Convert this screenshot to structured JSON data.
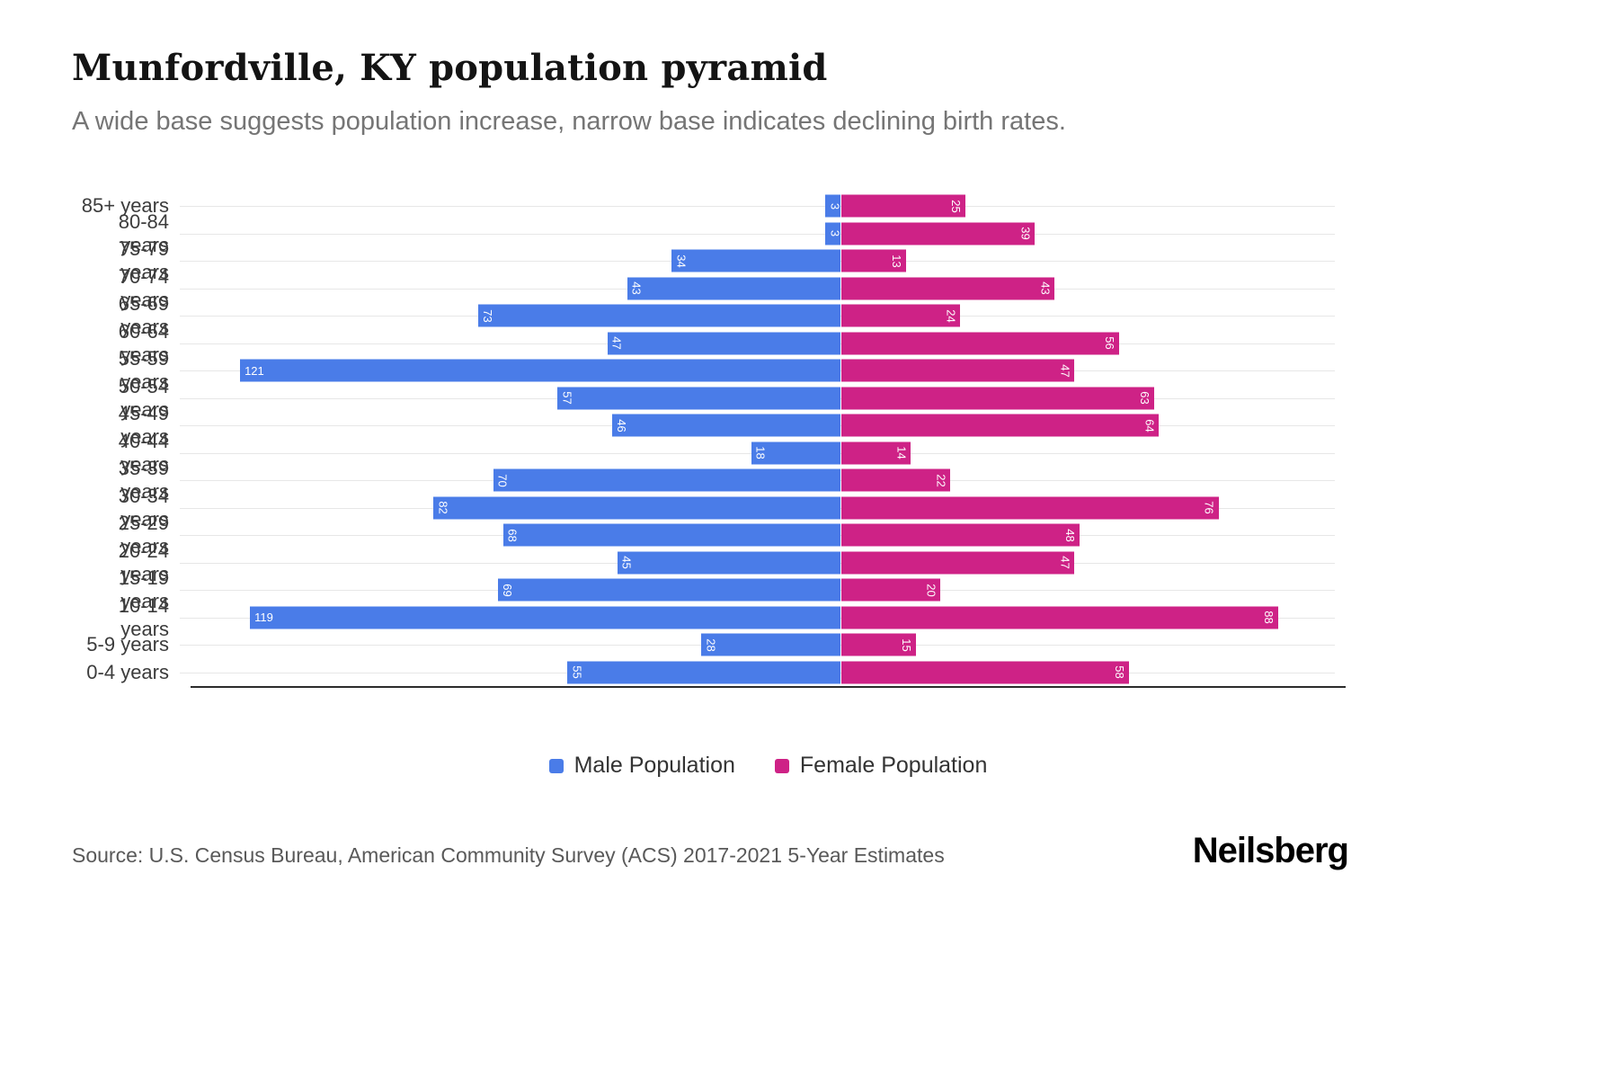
{
  "title": "Munfordville, KY population pyramid",
  "subtitle": "A wide base suggests population increase, narrow base indicates declining birth rates.",
  "source": "Source: U.S. Census Bureau, American Community Survey (ACS) 2017-2021 5-Year Estimates",
  "logo": "Neilsberg",
  "colors": {
    "male": "#4a7ce8",
    "female": "#ce2286",
    "gridline": "#e7e7e7",
    "axis": "#2b2b2b"
  },
  "legend": {
    "items": [
      {
        "label": "Male Population",
        "color": "#4a7ce8"
      },
      {
        "label": "Female Population",
        "color": "#ce2286"
      }
    ]
  },
  "chart_data": {
    "type": "bar",
    "variant": "population-pyramid",
    "orientation": "horizontal",
    "grid": true,
    "legend_position": "bottom-center",
    "categories": [
      "85+ years",
      "80-84 years",
      "75-79 years",
      "70-74 years",
      "65-69 years",
      "60-64 years",
      "55-59 years",
      "50-54 years",
      "45-49 years",
      "40-44 years",
      "35-39 years",
      "30-34 years",
      "25-29 years",
      "20-24 years",
      "15-19 years",
      "10-14 years",
      "5-9 years",
      "0-4 years"
    ],
    "series": [
      {
        "name": "Male Population",
        "side": "left",
        "values": [
          3,
          3,
          34,
          43,
          73,
          47,
          121,
          57,
          46,
          18,
          70,
          82,
          68,
          45,
          69,
          119,
          28,
          55
        ]
      },
      {
        "name": "Female Population",
        "side": "right",
        "values": [
          25,
          39,
          13,
          43,
          24,
          56,
          47,
          63,
          64,
          14,
          22,
          76,
          48,
          47,
          20,
          88,
          15,
          58
        ]
      }
    ],
    "xlim_left_units": 133,
    "xlim_right_units": 100
  }
}
